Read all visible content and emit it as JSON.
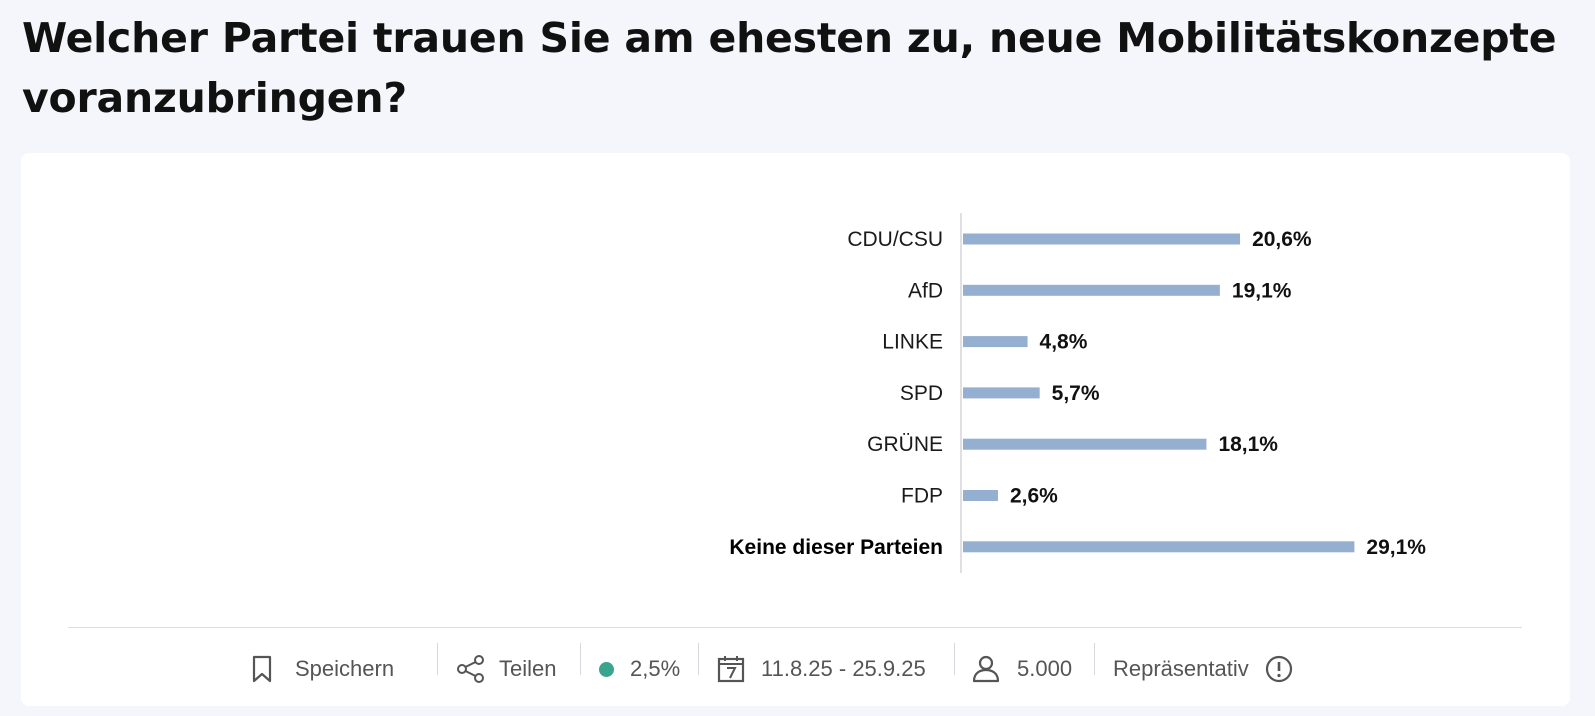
{
  "question": "Welcher Partei trauen Sie am ehesten zu, neue Mobilitätskonzepte voranzubringen?",
  "chart_data": {
    "type": "bar",
    "orientation": "horizontal",
    "categories": [
      "CDU/CSU",
      "AfD",
      "LINKE",
      "SPD",
      "GRÜNE",
      "FDP",
      "Keine dieser Parteien"
    ],
    "values": [
      20.6,
      19.1,
      4.8,
      5.7,
      18.1,
      2.6,
      29.1
    ],
    "value_labels": [
      "20,6%",
      "19,1%",
      "4,8%",
      "5,7%",
      "18,1%",
      "2,6%",
      "29,1%"
    ],
    "highlighted_category": "Keine dieser Parteien",
    "bar_color": "#94afd0",
    "unit": "%",
    "grid": false,
    "legend": "none"
  },
  "footer": {
    "save_label": "Speichern",
    "share_label": "Teilen",
    "error_margin": "2,5%",
    "error_dot_color": "#3aa58f",
    "date_range": "11.8.25 - 25.9.25",
    "sample_size": "5.000",
    "representative_label": "Repräsentativ",
    "icons": [
      "bookmark-icon",
      "share-icon",
      "calendar-icon",
      "person-icon",
      "info-icon"
    ]
  }
}
